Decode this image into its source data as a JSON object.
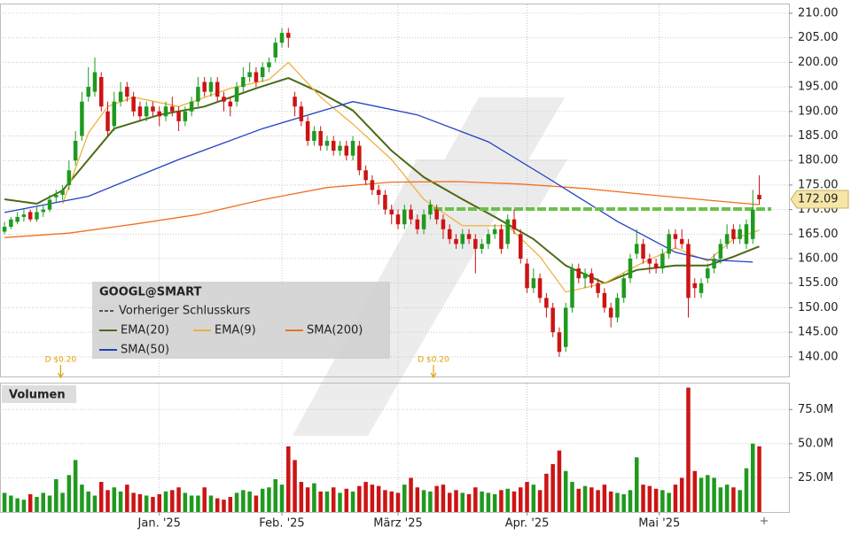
{
  "chart_data": {
    "type": "candlestick",
    "title": "GOOGL@SMART",
    "colors": {
      "up": "#1f9a1f",
      "down": "#cc1414"
    },
    "grid": true,
    "xlim": [
      -0.7,
      121.6
    ],
    "xticks": [
      {
        "value": 24,
        "label": "Jan. '25"
      },
      {
        "value": 43,
        "label": "Feb. '25"
      },
      {
        "value": 61,
        "label": "März '25"
      },
      {
        "value": 81,
        "label": "Apr. '25"
      },
      {
        "value": 101.5,
        "label": "Mai '25"
      }
    ],
    "ylim": [
      136,
      211.8
    ],
    "yticks": [
      {
        "value": 140,
        "label": "140.00"
      },
      {
        "value": 145,
        "label": "145.00"
      },
      {
        "value": 150,
        "label": "150.00"
      },
      {
        "value": 155,
        "label": "155.00"
      },
      {
        "value": 160,
        "label": "160.00"
      },
      {
        "value": 165,
        "label": "165.00"
      },
      {
        "value": 170,
        "label": "170.00"
      },
      {
        "value": 175,
        "label": "175.00"
      },
      {
        "value": 180,
        "label": "180.00"
      },
      {
        "value": 185,
        "label": "185.00"
      },
      {
        "value": 190,
        "label": "190.00"
      },
      {
        "value": 195,
        "label": "195.00"
      },
      {
        "value": 200,
        "label": "200.00"
      },
      {
        "value": 205,
        "label": "205.00"
      },
      {
        "value": 210,
        "label": "210.00"
      }
    ],
    "ohlc": [
      [
        165.5,
        167.5,
        165,
        166.5
      ],
      [
        166.5,
        168.5,
        166,
        168
      ],
      [
        167.5,
        169.5,
        167,
        168.5
      ],
      [
        168.5,
        170,
        167.5,
        169
      ],
      [
        169.5,
        170,
        167.5,
        168
      ],
      [
        168,
        170.5,
        167.5,
        169.5
      ],
      [
        169.5,
        171,
        168.5,
        170
      ],
      [
        170,
        173,
        169.5,
        172
      ],
      [
        172.5,
        174,
        171.5,
        173
      ],
      [
        173,
        175,
        172,
        174
      ],
      [
        175,
        180,
        174,
        178
      ],
      [
        180,
        186,
        179,
        184
      ],
      [
        185,
        194,
        184,
        192
      ],
      [
        193,
        199,
        192,
        195
      ],
      [
        194,
        201,
        193,
        198
      ],
      [
        197,
        198,
        190,
        191
      ],
      [
        190,
        192,
        185,
        186
      ],
      [
        187,
        194,
        186,
        192
      ],
      [
        192,
        196,
        191,
        194
      ],
      [
        195,
        196,
        192,
        193
      ],
      [
        193,
        194,
        189,
        190
      ],
      [
        191,
        192,
        188,
        189
      ],
      [
        189,
        192,
        188,
        191
      ],
      [
        191,
        192,
        189,
        190
      ],
      [
        190,
        191,
        187,
        189
      ],
      [
        189,
        192,
        188,
        191
      ],
      [
        191,
        193,
        189,
        190
      ],
      [
        190,
        191,
        186,
        188
      ],
      [
        188,
        191,
        187,
        190
      ],
      [
        190,
        193,
        189,
        192
      ],
      [
        192,
        197,
        191,
        195
      ],
      [
        196,
        197,
        193,
        194
      ],
      [
        194,
        197,
        193,
        196
      ],
      [
        196,
        197,
        192,
        193
      ],
      [
        193,
        194,
        190,
        192
      ],
      [
        192,
        193,
        189,
        191
      ],
      [
        192,
        196,
        191,
        195
      ],
      [
        195,
        199,
        194,
        197
      ],
      [
        197,
        200,
        196,
        198
      ],
      [
        198,
        199,
        195,
        196
      ],
      [
        197,
        200,
        196,
        199
      ],
      [
        199,
        201,
        198,
        200
      ],
      [
        201,
        205,
        200,
        204
      ],
      [
        204,
        207,
        203,
        206
      ],
      [
        206,
        207,
        203,
        205
      ],
      [
        193,
        194,
        189,
        191
      ],
      [
        191,
        192,
        187,
        188
      ],
      [
        188,
        189,
        183,
        184
      ],
      [
        184,
        187,
        183,
        186
      ],
      [
        186,
        187,
        182,
        183
      ],
      [
        183,
        185,
        182,
        184
      ],
      [
        184,
        185,
        181,
        182
      ],
      [
        182,
        184,
        181,
        183
      ],
      [
        183,
        184,
        180,
        181
      ],
      [
        181,
        185,
        180,
        184
      ],
      [
        183,
        184,
        177,
        178
      ],
      [
        178,
        179,
        175,
        176
      ],
      [
        176,
        177,
        173,
        174
      ],
      [
        174,
        175,
        171,
        173
      ],
      [
        173,
        174,
        169,
        170
      ],
      [
        170,
        171,
        167,
        169
      ],
      [
        169,
        170,
        166,
        167
      ],
      [
        167,
        171,
        166,
        170
      ],
      [
        170,
        171,
        167,
        168
      ],
      [
        168,
        169,
        165,
        166
      ],
      [
        166,
        170,
        165,
        169
      ],
      [
        169,
        172,
        168,
        171
      ],
      [
        170,
        171,
        167,
        168
      ],
      [
        168,
        169,
        164,
        166
      ],
      [
        166,
        167,
        163,
        164
      ],
      [
        164,
        165,
        162,
        163
      ],
      [
        163,
        166,
        162,
        165
      ],
      [
        165,
        166,
        163,
        164
      ],
      [
        164,
        165,
        157,
        162
      ],
      [
        162,
        164,
        161,
        163
      ],
      [
        163,
        166,
        162,
        165
      ],
      [
        165,
        167,
        164,
        166
      ],
      [
        166,
        167,
        161,
        162
      ],
      [
        163,
        169,
        162,
        168
      ],
      [
        168,
        170,
        165,
        166
      ],
      [
        165,
        166,
        159,
        160
      ],
      [
        159,
        160,
        153,
        154
      ],
      [
        154,
        158,
        153,
        156
      ],
      [
        156,
        157,
        151,
        152
      ],
      [
        152,
        153,
        148,
        150
      ],
      [
        150,
        151,
        144,
        145
      ],
      [
        145,
        146,
        140,
        141
      ],
      [
        142,
        151,
        141,
        150
      ],
      [
        150,
        159,
        149,
        158
      ],
      [
        158,
        159,
        155,
        156
      ],
      [
        156,
        158,
        154,
        157
      ],
      [
        157,
        158,
        154,
        155
      ],
      [
        155,
        156,
        152,
        153
      ],
      [
        153,
        154,
        149,
        150
      ],
      [
        150,
        151,
        146,
        148
      ],
      [
        148,
        153,
        147,
        152
      ],
      [
        152,
        157,
        151,
        156
      ],
      [
        156,
        161,
        155,
        160
      ],
      [
        161,
        166,
        160,
        163
      ],
      [
        163,
        164,
        159,
        160
      ],
      [
        160,
        161,
        157,
        159
      ],
      [
        159,
        160,
        157,
        158
      ],
      [
        158,
        162,
        157,
        161
      ],
      [
        161,
        166,
        160,
        165
      ],
      [
        165,
        166,
        162,
        164
      ],
      [
        164,
        166,
        162,
        163
      ],
      [
        163,
        164,
        148,
        152
      ],
      [
        155,
        156,
        152,
        154
      ],
      [
        153,
        156,
        152,
        155
      ],
      [
        156,
        159,
        155,
        158
      ],
      [
        158,
        161,
        157,
        160
      ],
      [
        160,
        164,
        159,
        163
      ],
      [
        163,
        167,
        162,
        165
      ],
      [
        166,
        167,
        163,
        164
      ],
      [
        164,
        167,
        163,
        166
      ],
      [
        163,
        168,
        162,
        167
      ],
      [
        164,
        174,
        163,
        170
      ],
      [
        173,
        177,
        171,
        172.09
      ]
    ],
    "prev_close": {
      "name": "Vorheriger Schlusskurs",
      "value": 170.1,
      "color": "#6cc04a"
    },
    "lines": [
      {
        "name": "EMA(20)",
        "color": "#4b6a14",
        "x": [
          0,
          5,
          9,
          13,
          17,
          24,
          31,
          39,
          44,
          49,
          54,
          60,
          65,
          71,
          76,
          82,
          87,
          93,
          98,
          104,
          109,
          113,
          117
        ],
        "values": [
          172.1,
          171.2,
          173.9,
          180.2,
          186.5,
          189.3,
          191,
          194.7,
          196.8,
          193.8,
          190.2,
          182,
          176.6,
          172.1,
          168.5,
          164,
          158.6,
          155,
          157.7,
          158.6,
          158.6,
          160.4,
          162.5
        ]
      },
      {
        "name": "EMA(9)",
        "color": "#f0b040",
        "x": [
          9,
          13,
          16,
          20,
          27,
          35,
          41,
          44,
          49,
          54,
          60,
          65,
          71,
          78,
          83,
          87,
          93,
          98,
          104,
          109,
          113,
          117
        ],
        "values": [
          171.2,
          185.6,
          191,
          192.9,
          191,
          194.7,
          196.5,
          200,
          192.9,
          187.4,
          180.2,
          172.1,
          166.7,
          166.7,
          160.4,
          153.2,
          155,
          158.6,
          162.2,
          159.5,
          164,
          165.8
        ]
      },
      {
        "name": "SMA(200)",
        "color": "#f07020",
        "x": [
          0,
          10,
          20,
          30,
          40,
          50,
          60,
          70,
          80,
          90,
          100,
          110,
          117
        ],
        "values": [
          164.3,
          165.2,
          167,
          169,
          172,
          174.5,
          175.6,
          175.7,
          175.2,
          174.3,
          173,
          171.8,
          171
        ]
      },
      {
        "name": "SMA(50)",
        "color": "#2040c0",
        "x": [
          0,
          13,
          27,
          40,
          54,
          64,
          75,
          84,
          95,
          104,
          109,
          116
        ],
        "values": [
          169.4,
          172.7,
          180.2,
          186.5,
          192,
          189.3,
          183.8,
          176.6,
          167.6,
          161.3,
          159.8,
          159.3
        ]
      }
    ],
    "annotations": [
      {
        "x": 8.7,
        "label": "D $0.20"
      },
      {
        "x": 66.5,
        "label": "D $0.20"
      }
    ],
    "volume": {
      "title": "Volumen",
      "ylim": [
        0,
        94
      ],
      "yticks": [
        {
          "value": 25,
          "label": "25.0M"
        },
        {
          "value": 50,
          "label": "50.0M"
        },
        {
          "value": 75,
          "label": "75.0M"
        }
      ],
      "values": [
        14,
        12,
        10,
        9,
        13,
        11,
        14,
        12,
        24,
        14,
        27,
        38,
        20,
        15,
        12,
        22,
        16,
        18,
        15,
        20,
        14,
        13,
        12,
        11,
        13,
        15,
        16,
        18,
        14,
        12,
        12,
        18,
        12,
        10,
        9,
        11,
        14,
        16,
        15,
        12,
        17,
        18,
        24,
        20,
        48,
        38,
        22,
        18,
        21,
        15,
        15,
        18,
        14,
        17,
        15,
        19,
        22,
        20,
        19,
        16,
        15,
        14,
        20,
        25,
        18,
        16,
        15,
        19,
        20,
        14,
        16,
        14,
        13,
        18,
        15,
        14,
        13,
        16,
        17,
        15,
        18,
        22,
        20,
        16,
        28,
        35,
        45,
        30,
        22,
        17,
        19,
        18,
        16,
        20,
        15,
        14,
        13,
        16,
        40,
        20,
        19,
        17,
        16,
        14,
        20,
        25,
        91,
        30,
        25,
        27,
        25,
        18,
        20,
        18,
        16,
        32,
        50,
        48
      ]
    }
  }
}
